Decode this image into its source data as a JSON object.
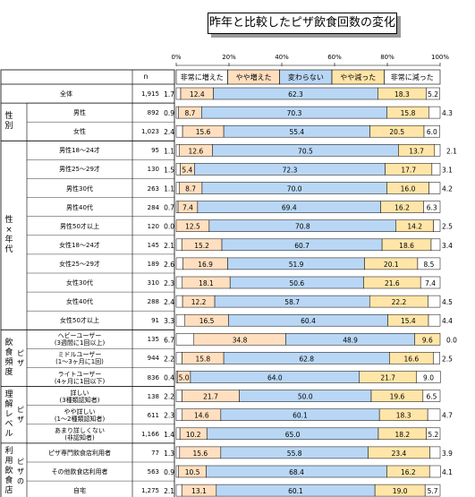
{
  "chart_data": {
    "type": "bar",
    "title": "昨年と比較したピザ飲食回数の変化",
    "x_ticks": [
      "0%",
      "20%",
      "40%",
      "60%",
      "80%",
      "100%"
    ],
    "xlim": [
      0,
      100
    ],
    "stacked": true,
    "orientation": "horizontal",
    "n_header": "n",
    "legend": [
      "非常に増えた",
      "やや増えた",
      "変わらない",
      "やや減った",
      "非常に減った"
    ],
    "colors": [
      "#ffffff",
      "#ffdfbf",
      "#b9d7f5",
      "#ffe5a8",
      "#ffffff"
    ],
    "groups": [
      {
        "label": "",
        "rows": [
          0
        ]
      },
      {
        "label": "性別",
        "rows": [
          1,
          2
        ]
      },
      {
        "label": "性×年代",
        "rows": [
          3,
          4,
          5,
          6,
          7,
          8,
          9,
          10,
          11,
          12
        ]
      },
      {
        "label": "飲食頻度",
        "sub": "ピザ",
        "rows": [
          13,
          14,
          15
        ]
      },
      {
        "label": "理解レベル",
        "sub": "ピザ",
        "rows": [
          16,
          17,
          18
        ]
      },
      {
        "label": "利用飲食店",
        "sub": "ピザの",
        "rows": [
          19,
          20,
          21
        ]
      }
    ],
    "rows": [
      {
        "label": "全体",
        "n": "1,915",
        "values": [
          1.7,
          12.4,
          62.3,
          18.3,
          5.2
        ]
      },
      {
        "label": "男性",
        "n": "892",
        "values": [
          0.9,
          8.7,
          70.3,
          15.8,
          4.3
        ]
      },
      {
        "label": "女性",
        "n": "1,023",
        "values": [
          2.4,
          15.6,
          55.4,
          20.5,
          6.0
        ]
      },
      {
        "label": "男性18～24才",
        "n": "95",
        "values": [
          1.1,
          12.6,
          70.5,
          13.7,
          2.1
        ]
      },
      {
        "label": "男性25～29才",
        "n": "130",
        "values": [
          1.5,
          5.4,
          72.3,
          17.7,
          3.1
        ]
      },
      {
        "label": "男性30代",
        "n": "263",
        "values": [
          1.1,
          8.7,
          70.0,
          16.0,
          4.2
        ]
      },
      {
        "label": "男性40代",
        "n": "284",
        "values": [
          0.7,
          7.4,
          69.4,
          16.2,
          6.3
        ]
      },
      {
        "label": "男性50才以上",
        "n": "120",
        "values": [
          0.0,
          12.5,
          70.8,
          14.2,
          2.5
        ]
      },
      {
        "label": "女性18～24才",
        "n": "145",
        "values": [
          2.1,
          15.2,
          60.7,
          18.6,
          3.4
        ]
      },
      {
        "label": "女性25～29才",
        "n": "189",
        "values": [
          2.6,
          16.9,
          51.9,
          20.1,
          8.5
        ]
      },
      {
        "label": "女性30代",
        "n": "310",
        "values": [
          2.3,
          18.1,
          50.6,
          21.6,
          7.4
        ]
      },
      {
        "label": "女性40代",
        "n": "288",
        "values": [
          2.4,
          12.2,
          58.7,
          22.2,
          4.5
        ]
      },
      {
        "label": "女性50才以上",
        "n": "91",
        "values": [
          3.3,
          16.5,
          60.4,
          15.4,
          4.4
        ]
      },
      {
        "label": "ヘビーユーザー\n(3週間に1回以上)",
        "n": "135",
        "values": [
          6.7,
          34.8,
          48.9,
          9.6,
          0.0
        ]
      },
      {
        "label": "ミドルユーザー\n(1～3ヶ月に1回)",
        "n": "944",
        "values": [
          2.2,
          15.8,
          62.8,
          16.6,
          2.5
        ]
      },
      {
        "label": "ライトユーザー\n(4ヶ月に1回以下)",
        "n": "836",
        "values": [
          0.4,
          5.0,
          64.0,
          21.7,
          9.0
        ]
      },
      {
        "label": "詳しい\n(3種類認知者)",
        "n": "138",
        "values": [
          2.2,
          21.7,
          50.0,
          19.6,
          6.5
        ]
      },
      {
        "label": "やや詳しい\n(1～2種類認知者)",
        "n": "611",
        "values": [
          2.3,
          14.6,
          60.1,
          18.3,
          4.7
        ]
      },
      {
        "label": "あまり詳しくない\n(非認知者)",
        "n": "1,166",
        "values": [
          1.4,
          10.2,
          65.0,
          18.2,
          5.2
        ]
      },
      {
        "label": "ピザ専門飲食店利用者",
        "n": "77",
        "values": [
          1.3,
          15.6,
          55.8,
          23.4,
          3.9
        ]
      },
      {
        "label": "その他飲食店利用者",
        "n": "563",
        "values": [
          0.9,
          10.5,
          68.4,
          16.2,
          4.1
        ]
      },
      {
        "label": "自宅",
        "n": "1,275",
        "values": [
          2.1,
          13.1,
          60.1,
          19.0,
          5.7
        ]
      }
    ]
  }
}
